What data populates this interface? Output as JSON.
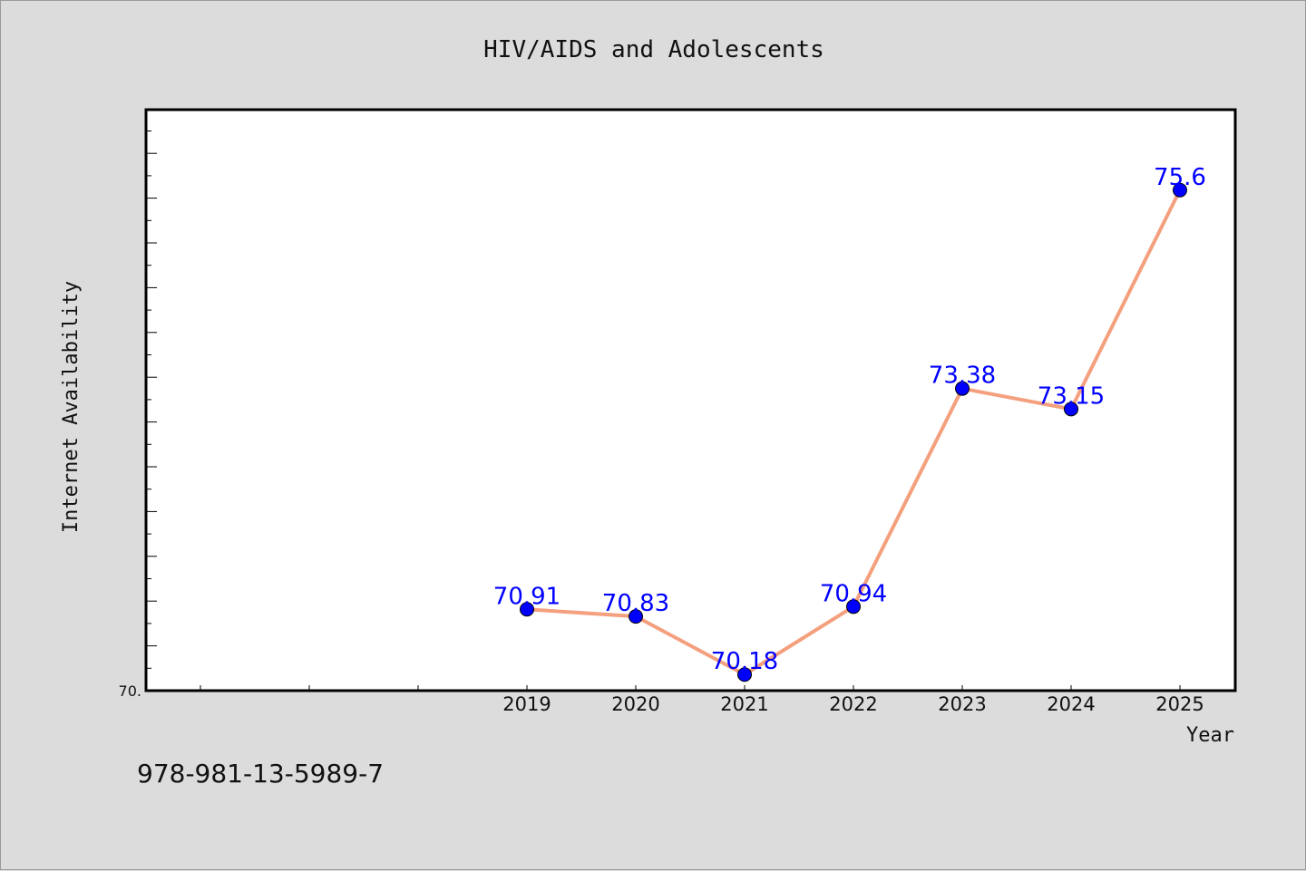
{
  "chart_data": {
    "type": "line",
    "title": "HIV/AIDS and Adolescents",
    "xlabel": "Year",
    "ylabel": "Internet Availability",
    "x": [
      "2019",
      "2020",
      "2021",
      "2022",
      "2023",
      "2024",
      "2025"
    ],
    "values": [
      70.91,
      70.83,
      70.18,
      70.94,
      73.38,
      73.15,
      75.6
    ],
    "data_labels": [
      "70.91",
      "70.83",
      "70.18",
      "70.94",
      "73.38",
      "73.15",
      "75.6"
    ],
    "ylim": [
      70,
      76.5
    ],
    "y_tick_labels": [
      "70."
    ],
    "line_color": "#f4a07e",
    "marker_color": "#0000ff",
    "label_color": "#0000ff",
    "grid": false,
    "legend": "none"
  },
  "footer": {
    "isbn": "978-981-13-5989-7"
  }
}
